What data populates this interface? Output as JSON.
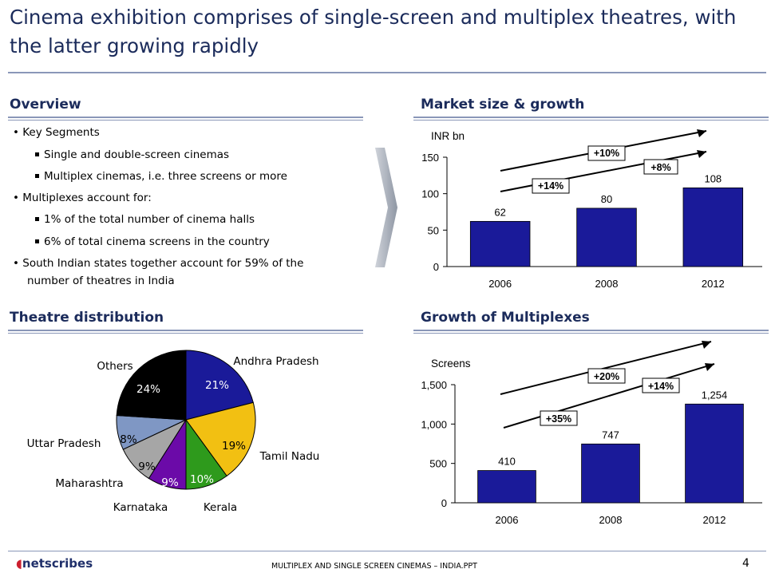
{
  "title": "Cinema exhibition comprises of single-screen and multiplex theatres, with the latter growing rapidly",
  "overview": {
    "heading": "Overview",
    "items": [
      {
        "text": "• Key Segments"
      },
      {
        "text": "Single and double-screen cinemas"
      },
      {
        "text": "Multiplex cinemas, i.e. three screens or more"
      },
      {
        "text": "• Multiplexes account for:"
      },
      {
        "text": "1% of the total number of cinema halls"
      },
      {
        "text": "6% of  total cinema screens in the country"
      },
      {
        "text": "• South Indian states together account for 59% of the"
      },
      {
        "text": "number of theatres in India"
      }
    ]
  },
  "market": {
    "heading": "Market size & growth",
    "unit": "INR bn",
    "growth_labels": [
      "+10%",
      "+14%",
      "+8%"
    ]
  },
  "theatre": {
    "heading": "Theatre distribution"
  },
  "multiplex": {
    "heading": "Growth of Multiplexes",
    "unit": "Screens",
    "growth_labels": [
      "+20%",
      "+14%",
      "+35%"
    ]
  },
  "chart_data": [
    {
      "type": "bar",
      "title": "Market size & growth",
      "ylabel": "INR bn",
      "categories": [
        "2006",
        "2008",
        "2012"
      ],
      "values": [
        62,
        80,
        108
      ],
      "value_labels": [
        "62",
        "80",
        "108"
      ],
      "ylim": [
        0,
        150
      ],
      "yticks": [
        0,
        50,
        100,
        150
      ],
      "ytick_labels": [
        "0",
        "50",
        "100",
        "150"
      ],
      "color": "#1a1a99"
    },
    {
      "type": "pie",
      "title": "Theatre distribution",
      "slices": [
        {
          "label": "Andhra Pradesh",
          "value": 21,
          "pct": "21%",
          "color": "#1a1a99"
        },
        {
          "label": "Tamil Nadu",
          "value": 19,
          "pct": "19%",
          "color": "#f2c012"
        },
        {
          "label": "Kerala",
          "value": 10,
          "pct": "10%",
          "color": "#2e9a1c"
        },
        {
          "label": "Karnataka",
          "value": 9,
          "pct": "9%",
          "color": "#6b0aa8"
        },
        {
          "label": "Maharashtra",
          "value": 9,
          "pct": "9%",
          "color": "#a6a6a6"
        },
        {
          "label": "Uttar Pradesh",
          "value": 8,
          "pct": "8%",
          "color": "#7f97c4"
        },
        {
          "label": "Others",
          "value": 24,
          "pct": "24%",
          "color": "#000000"
        }
      ]
    },
    {
      "type": "bar",
      "title": "Growth of Multiplexes",
      "ylabel": "Screens",
      "categories": [
        "2006",
        "2008",
        "2012"
      ],
      "values": [
        410,
        747,
        1254
      ],
      "value_labels": [
        "410",
        "747",
        "1,254"
      ],
      "ylim": [
        0,
        1500
      ],
      "yticks": [
        0,
        500,
        1000,
        1500
      ],
      "ytick_labels": [
        "0",
        "500",
        "1,000",
        "1,500"
      ],
      "color": "#1a1a99"
    }
  ],
  "footer": {
    "logo_n": "n",
    "logo_rest": "netscribes",
    "text": "MULTIPLEX AND SINGLE SCREEN CINEMAS – INDIA.PPT",
    "page": "4"
  }
}
